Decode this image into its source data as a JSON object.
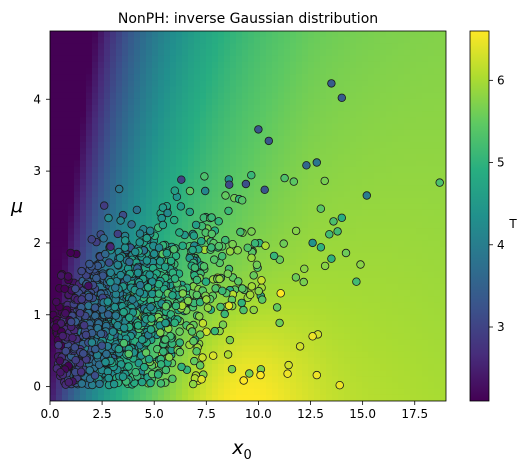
{
  "chart_data": {
    "type": "scatter",
    "title": "NonPH: inverse Gaussian distribution",
    "xlabel": "x",
    "xlabel_sub": "0",
    "ylabel": "μ",
    "colorbar_label": "T",
    "xlim": [
      0,
      19
    ],
    "ylim": [
      -0.2,
      4.95
    ],
    "color_lim": [
      2.1,
      6.6
    ],
    "colormap": "viridis",
    "x_ticks": [
      0.0,
      2.5,
      5.0,
      7.5,
      10.0,
      12.5,
      15.0,
      17.5
    ],
    "x_tick_labels": [
      "0.0",
      "2.5",
      "5.0",
      "7.5",
      "10.0",
      "12.5",
      "15.0",
      "17.5"
    ],
    "y_ticks": [
      0,
      1,
      2,
      3,
      4
    ],
    "y_tick_labels": [
      "0",
      "1",
      "2",
      "3",
      "4"
    ],
    "colorbar_ticks": [
      3,
      4,
      5,
      6
    ],
    "colorbar_tick_labels": [
      "3",
      "4",
      "5",
      "6"
    ],
    "background": "heatmap of T over (x0, μ); low (~2.5) near x0≈0 μ high, high (~6.5) near x0≈7–10 μ≈0",
    "points": [
      {
        "x": 18.7,
        "y": 2.84,
        "t": 5.3
      },
      {
        "x": 13.5,
        "y": 4.22,
        "t": 3.4
      },
      {
        "x": 14.0,
        "y": 4.02,
        "t": 3.4
      },
      {
        "x": 10.0,
        "y": 3.58,
        "t": 3.3
      },
      {
        "x": 10.5,
        "y": 3.42,
        "t": 3.3
      },
      {
        "x": 12.8,
        "y": 3.12,
        "t": 3.9
      },
      {
        "x": 12.3,
        "y": 3.08,
        "t": 3.6
      },
      {
        "x": 15.2,
        "y": 2.66,
        "t": 4.0
      },
      {
        "x": 2.6,
        "y": 2.52,
        "t": 2.9
      },
      {
        "x": 6.3,
        "y": 2.88,
        "t": 3.0
      },
      {
        "x": 8.6,
        "y": 2.81,
        "t": 3.1
      },
      {
        "x": 9.4,
        "y": 2.82,
        "t": 3.2
      },
      {
        "x": 10.3,
        "y": 2.74,
        "t": 3.3
      },
      {
        "x": 14.0,
        "y": 2.35,
        "t": 4.9
      },
      {
        "x": 13.6,
        "y": 2.3,
        "t": 5.3
      },
      {
        "x": 13.4,
        "y": 2.12,
        "t": 5.2
      },
      {
        "x": 13.8,
        "y": 2.16,
        "t": 5.2
      },
      {
        "x": 12.6,
        "y": 2.0,
        "t": 4.4
      },
      {
        "x": 13.0,
        "y": 1.94,
        "t": 5.0
      },
      {
        "x": 14.2,
        "y": 1.86,
        "t": 5.6
      },
      {
        "x": 13.5,
        "y": 1.78,
        "t": 5.0
      },
      {
        "x": 13.2,
        "y": 1.68,
        "t": 5.8
      },
      {
        "x": 14.7,
        "y": 1.46,
        "t": 5.2
      },
      {
        "x": 14.9,
        "y": 1.7,
        "t": 5.8
      },
      {
        "x": 12.2,
        "y": 1.64,
        "t": 5.8
      },
      {
        "x": 11.8,
        "y": 1.52,
        "t": 5.6
      },
      {
        "x": 12.0,
        "y": 0.56,
        "t": 6.3
      },
      {
        "x": 12.6,
        "y": 0.7,
        "t": 6.5
      },
      {
        "x": 12.8,
        "y": 0.16,
        "t": 6.5
      },
      {
        "x": 13.9,
        "y": 0.02,
        "t": 6.5
      },
      {
        "x": 10.1,
        "y": 0.16,
        "t": 6.6
      },
      {
        "x": 11.4,
        "y": 0.18,
        "t": 6.5
      },
      {
        "x": 0.5,
        "y": 0.2,
        "t": 2.4
      },
      {
        "x": 0.9,
        "y": 0.06,
        "t": 2.5
      },
      {
        "x": 2.0,
        "y": 2.05,
        "t": 3.0
      },
      {
        "x": 0.3,
        "y": 1.18,
        "t": 2.2
      }
    ]
  }
}
